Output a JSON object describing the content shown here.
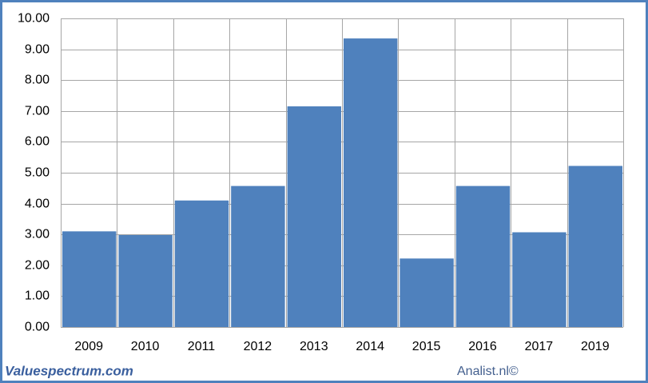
{
  "chart_data": {
    "type": "bar",
    "categories": [
      "2009",
      "2010",
      "2011",
      "2012",
      "2013",
      "2014",
      "2015",
      "2016",
      "2017",
      "2019"
    ],
    "values": [
      3.1,
      2.98,
      4.1,
      4.57,
      7.15,
      9.35,
      2.22,
      4.57,
      3.07,
      5.22
    ],
    "color": "#4f81bd",
    "ylim": [
      0,
      10
    ],
    "yticks": [
      {
        "value": 0,
        "label": "0.00"
      },
      {
        "value": 1,
        "label": "1.00"
      },
      {
        "value": 2,
        "label": "2.00"
      },
      {
        "value": 3,
        "label": "3.00"
      },
      {
        "value": 4,
        "label": "4.00"
      },
      {
        "value": 5,
        "label": "5.00"
      },
      {
        "value": 6,
        "label": "6.00"
      },
      {
        "value": 7,
        "label": "7.00"
      },
      {
        "value": 8,
        "label": "8.00"
      },
      {
        "value": 9,
        "label": "9.00"
      },
      {
        "value": 10,
        "label": "10.00"
      }
    ],
    "grid": true,
    "footer_left": "Valuespectrum.com",
    "footer_right": "Analist.nl©"
  }
}
